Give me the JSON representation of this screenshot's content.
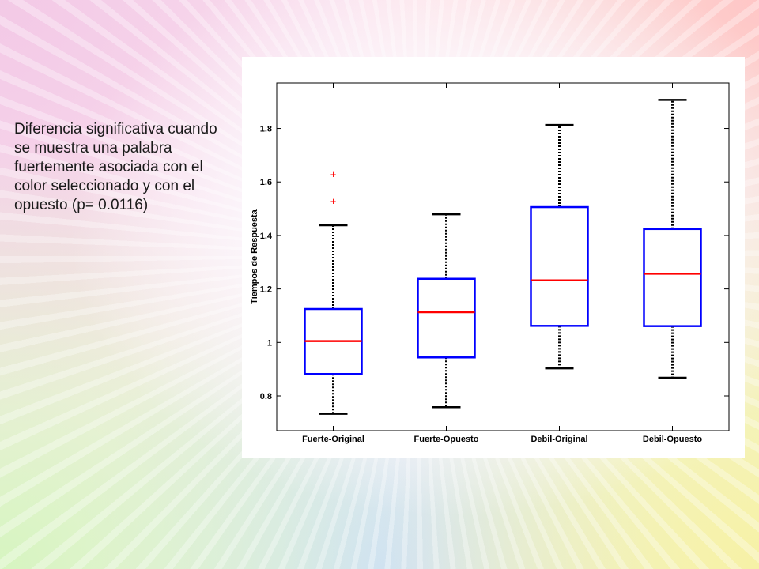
{
  "caption": "Diferencia significativa cuando se muestra una palabra fuertemente asociada con el color seleccionado y con el opuesto (p= 0.0116)",
  "chart_data": {
    "type": "boxplot",
    "ylabel": "Tiempos de Respuesta",
    "xlabel": "",
    "ylim": [
      0.67,
      1.97
    ],
    "yticks": [
      0.8,
      1,
      1.2,
      1.4,
      1.6,
      1.8
    ],
    "ytick_labels": [
      "0.8",
      "1",
      "1.2",
      "1.4",
      "1.6",
      "1.8"
    ],
    "categories": [
      "Fuerte-Original",
      "Fuerte-Opuesto",
      "Debil-Original",
      "Debil-Opuesto"
    ],
    "boxes": [
      {
        "whisker_low": 0.733,
        "q1": 0.882,
        "median": 1.005,
        "q3": 1.125,
        "whisker_high": 1.438,
        "outliers": [
          1.528,
          1.629
        ]
      },
      {
        "whisker_low": 0.758,
        "q1": 0.944,
        "median": 1.113,
        "q3": 1.238,
        "whisker_high": 1.479,
        "outliers": []
      },
      {
        "whisker_low": 0.903,
        "q1": 1.062,
        "median": 1.232,
        "q3": 1.506,
        "whisker_high": 1.813,
        "outliers": []
      },
      {
        "whisker_low": 0.868,
        "q1": 1.061,
        "median": 1.257,
        "q3": 1.424,
        "whisker_high": 1.907,
        "outliers": []
      }
    ],
    "colors": {
      "box": "#0000ff",
      "median": "#ff0000",
      "whisker": "#000000",
      "outlier": "#ff0000"
    },
    "grid": false,
    "legend": "none"
  }
}
